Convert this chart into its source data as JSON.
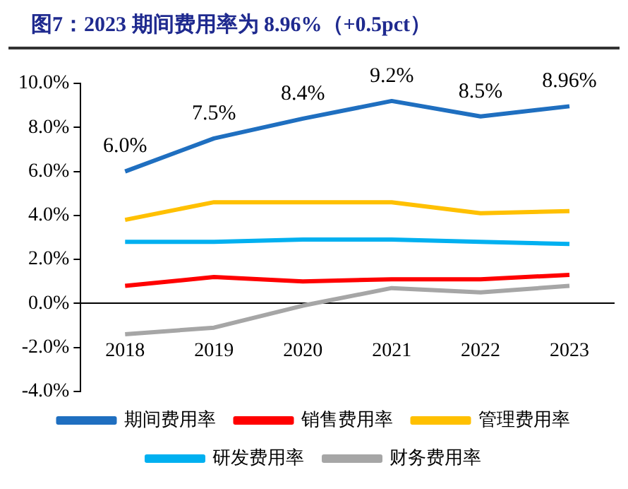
{
  "chart_data": {
    "type": "line",
    "title": "图7：2023 期间费用率为 8.96%（+0.5pct）",
    "categories": [
      "2018",
      "2019",
      "2020",
      "2021",
      "2022",
      "2023"
    ],
    "series": [
      {
        "name": "期间费用率",
        "color": "#1f6fc0",
        "values": [
          6.0,
          7.5,
          8.4,
          9.2,
          8.5,
          8.96
        ],
        "value_labels": [
          "6.0%",
          "7.5%",
          "8.4%",
          "9.2%",
          "8.5%",
          "8.96%"
        ]
      },
      {
        "name": "销售费用率",
        "color": "#ff0000",
        "values": [
          0.8,
          1.2,
          1.0,
          1.1,
          1.1,
          1.3
        ]
      },
      {
        "name": "管理费用率",
        "color": "#ffc000",
        "values": [
          3.8,
          4.6,
          4.6,
          4.6,
          4.1,
          4.2
        ]
      },
      {
        "name": "研发费用率",
        "color": "#00b0f0",
        "values": [
          2.8,
          2.8,
          2.9,
          2.9,
          2.8,
          2.7
        ]
      },
      {
        "name": "财务费用率",
        "color": "#a6a6a6",
        "values": [
          -1.4,
          -1.1,
          -0.1,
          0.7,
          0.5,
          0.8
        ]
      }
    ],
    "ylim": [
      -4,
      10
    ],
    "yticks": [
      {
        "value": -4,
        "label": "-4.0%"
      },
      {
        "value": -2,
        "label": "-2.0%"
      },
      {
        "value": 0,
        "label": "0.0%"
      },
      {
        "value": 2,
        "label": "2.0%"
      },
      {
        "value": 4,
        "label": "4.0%"
      },
      {
        "value": 6,
        "label": "6.0%"
      },
      {
        "value": 8,
        "label": "8.0%"
      },
      {
        "value": 10,
        "label": "10.0%"
      }
    ],
    "marker": "none",
    "legend": "bottom"
  }
}
